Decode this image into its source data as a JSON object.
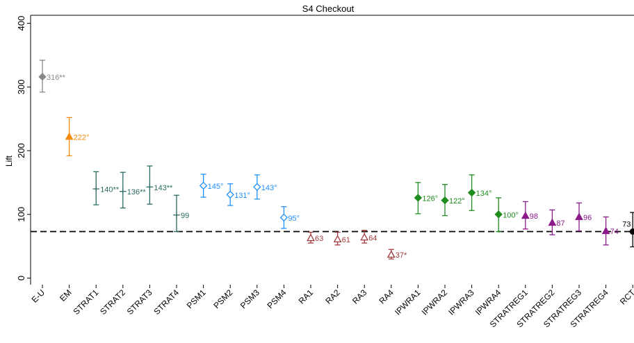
{
  "chart_data": {
    "type": "scatter",
    "title": "S4 Checkout",
    "xlabel": "",
    "ylabel": "Lift",
    "ylim": [
      -5,
      410
    ],
    "yticks": [
      0,
      100,
      200,
      300,
      400
    ],
    "grid": false,
    "legend": "none",
    "reference_line": {
      "y": 73,
      "style": "dashed",
      "color": "#000000"
    },
    "categories": [
      "E-U",
      "EM",
      "STRAT1",
      "STRAT2",
      "STRAT3",
      "STRAT4",
      "PSM1",
      "PSM2",
      "PSM3",
      "PSM4",
      "RA1",
      "RA2",
      "RA3",
      "RA4",
      "IPWRA1",
      "IPWRA2",
      "IPWRA3",
      "IPWRA4",
      "STRATREG1",
      "STRATREG2",
      "STRATREG3",
      "STRATREG4",
      "RCT"
    ],
    "points": [
      {
        "category": "E-U",
        "value": 316,
        "low": 292,
        "high": 342,
        "label": "316**",
        "color": "#888888",
        "marker": "diamond-filled"
      },
      {
        "category": "EM",
        "value": 222,
        "low": 192,
        "high": 252,
        "label": "222°",
        "color": "#f58a07",
        "marker": "triangle-filled"
      },
      {
        "category": "STRAT1",
        "value": 140,
        "low": 115,
        "high": 167,
        "label": "140**",
        "color": "#2a6b61",
        "marker": "plus"
      },
      {
        "category": "STRAT2",
        "value": 136,
        "low": 110,
        "high": 166,
        "label": "136**",
        "color": "#2a6b61",
        "marker": "plus"
      },
      {
        "category": "STRAT3",
        "value": 143,
        "low": 116,
        "high": 176,
        "label": "143**",
        "color": "#2a6b61",
        "marker": "plus"
      },
      {
        "category": "STRAT4",
        "value": 99,
        "low": 73,
        "high": 130,
        "label": "99",
        "color": "#2a6b61",
        "marker": "plus"
      },
      {
        "category": "PSM1",
        "value": 145,
        "low": 127,
        "high": 163,
        "label": "145°",
        "color": "#1e90ff",
        "marker": "diamond-open"
      },
      {
        "category": "PSM2",
        "value": 131,
        "low": 114,
        "high": 148,
        "label": "131°",
        "color": "#1e90ff",
        "marker": "diamond-open"
      },
      {
        "category": "PSM3",
        "value": 143,
        "low": 124,
        "high": 162,
        "label": "143°",
        "color": "#1e90ff",
        "marker": "diamond-open"
      },
      {
        "category": "PSM4",
        "value": 95,
        "low": 78,
        "high": 112,
        "label": "95°",
        "color": "#1e90ff",
        "marker": "diamond-open"
      },
      {
        "category": "RA1",
        "value": 63,
        "low": 55,
        "high": 72,
        "label": "63",
        "color": "#a03c3c",
        "marker": "triangle-open"
      },
      {
        "category": "RA2",
        "value": 61,
        "low": 52,
        "high": 72,
        "label": "61",
        "color": "#a03c3c",
        "marker": "triangle-open"
      },
      {
        "category": "RA3",
        "value": 64,
        "low": 55,
        "high": 75,
        "label": "64",
        "color": "#a03c3c",
        "marker": "triangle-open"
      },
      {
        "category": "RA4",
        "value": 37,
        "low": 30,
        "high": 45,
        "label": "37*",
        "color": "#a03c3c",
        "marker": "triangle-open"
      },
      {
        "category": "IPWRA1",
        "value": 126,
        "low": 101,
        "high": 150,
        "label": "126°",
        "color": "#1e8c1e",
        "marker": "diamond-filled"
      },
      {
        "category": "IPWRA2",
        "value": 122,
        "low": 98,
        "high": 147,
        "label": "122°",
        "color": "#1e8c1e",
        "marker": "diamond-filled"
      },
      {
        "category": "IPWRA3",
        "value": 134,
        "low": 106,
        "high": 162,
        "label": "134°",
        "color": "#1e8c1e",
        "marker": "diamond-filled"
      },
      {
        "category": "IPWRA4",
        "value": 100,
        "low": 73,
        "high": 126,
        "label": "100°",
        "color": "#1e8c1e",
        "marker": "diamond-filled"
      },
      {
        "category": "STRATREG1",
        "value": 98,
        "low": 77,
        "high": 120,
        "label": "98",
        "color": "#8b1a8b",
        "marker": "triangle-filled"
      },
      {
        "category": "STRATREG2",
        "value": 87,
        "low": 68,
        "high": 107,
        "label": "87",
        "color": "#8b1a8b",
        "marker": "triangle-filled"
      },
      {
        "category": "STRATREG3",
        "value": 96,
        "low": 74,
        "high": 118,
        "label": "96",
        "color": "#8b1a8b",
        "marker": "triangle-filled"
      },
      {
        "category": "STRATREG4",
        "value": 74,
        "low": 52,
        "high": 96,
        "label": "74",
        "color": "#8b1a8b",
        "marker": "triangle-filled"
      },
      {
        "category": "RCT",
        "value": 73,
        "low": 49,
        "high": 103,
        "label": "73",
        "color": "#000000",
        "marker": "circle-filled"
      }
    ]
  }
}
